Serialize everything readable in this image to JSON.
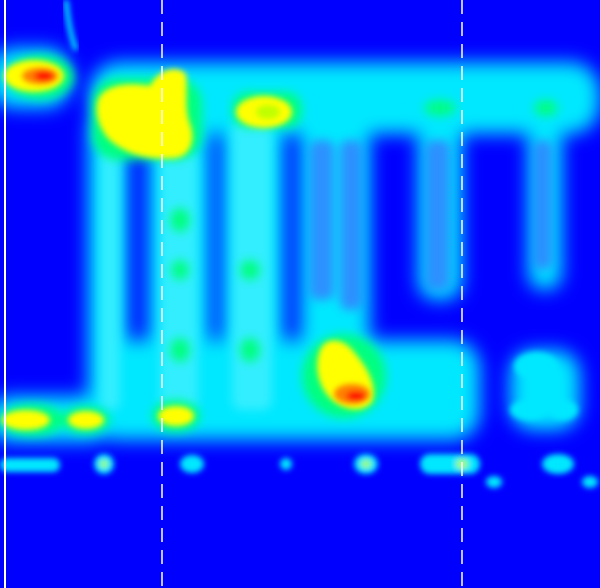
{
  "image": {
    "description_type": "false-color intensity map",
    "colormap": [
      "#0000ff",
      "#00e5ff",
      "#00ff80",
      "#ffff00",
      "#ff0000"
    ],
    "background_color": "#0000ff",
    "guide_lines": {
      "solid_color": "#ffffff",
      "dashed_color": "#ffffff"
    }
  }
}
